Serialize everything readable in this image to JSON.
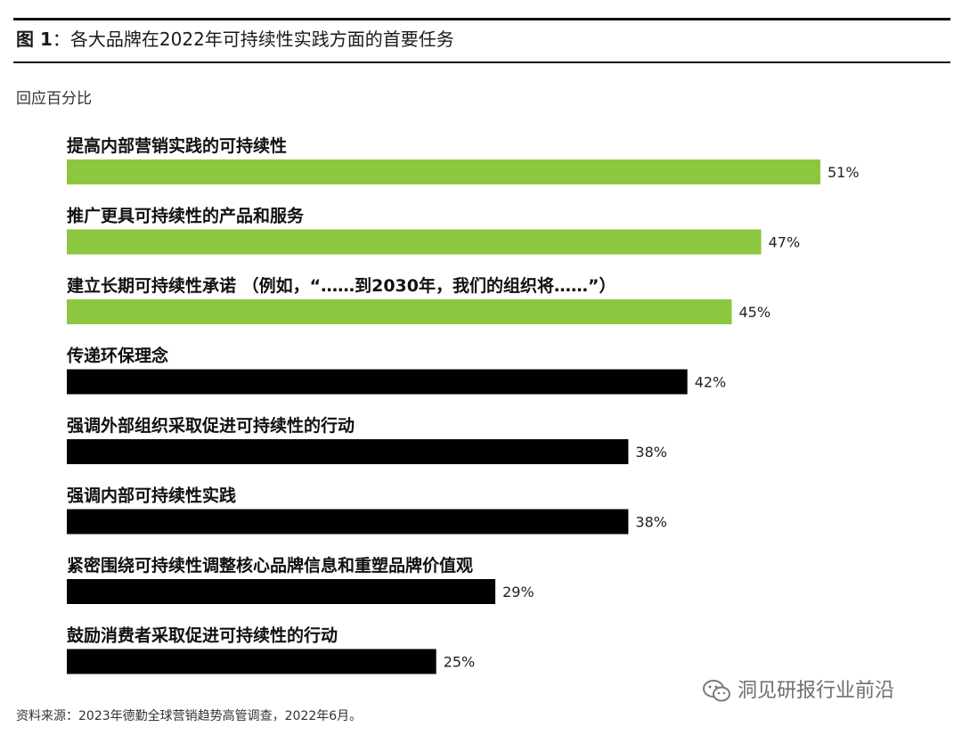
{
  "figure": {
    "label": "图 1",
    "separator": "：",
    "title": "各大品牌在2022年可持续性实践方面的首要任务"
  },
  "subtitle": "回应百分比",
  "chart_data": {
    "type": "bar",
    "orientation": "horizontal",
    "unit": "%",
    "xlim": [
      0,
      51
    ],
    "grid": false,
    "legend": "none",
    "categories": [
      "提高内部营销实践的可持续性",
      "推广更具可持续性的产品和服务",
      "建立长期可持续性承诺 （例如，“……到2030年，我们的组织将……”）",
      "传递环保理念",
      "强调外部组织采取促进可持续性的行动",
      "强调内部可持续性实践",
      "紧密围绕可持续性调整核心品牌信息和重塑品牌价值观",
      "鼓励消费者采取促进可持续性的行动"
    ],
    "values": [
      51,
      47,
      45,
      42,
      38,
      38,
      29,
      25
    ],
    "value_labels": [
      "51%",
      "47%",
      "45%",
      "42%",
      "38%",
      "38%",
      "29%",
      "25%"
    ],
    "colors": [
      "#8dc63f",
      "#8dc63f",
      "#8dc63f",
      "#000000",
      "#000000",
      "#000000",
      "#000000",
      "#000000"
    ]
  },
  "source": "资料来源：2023年德勤全球营销趋势高管调查，2022年6月。",
  "watermark": {
    "icon": "wechat-icon",
    "text": "洞见研报行业前沿"
  }
}
